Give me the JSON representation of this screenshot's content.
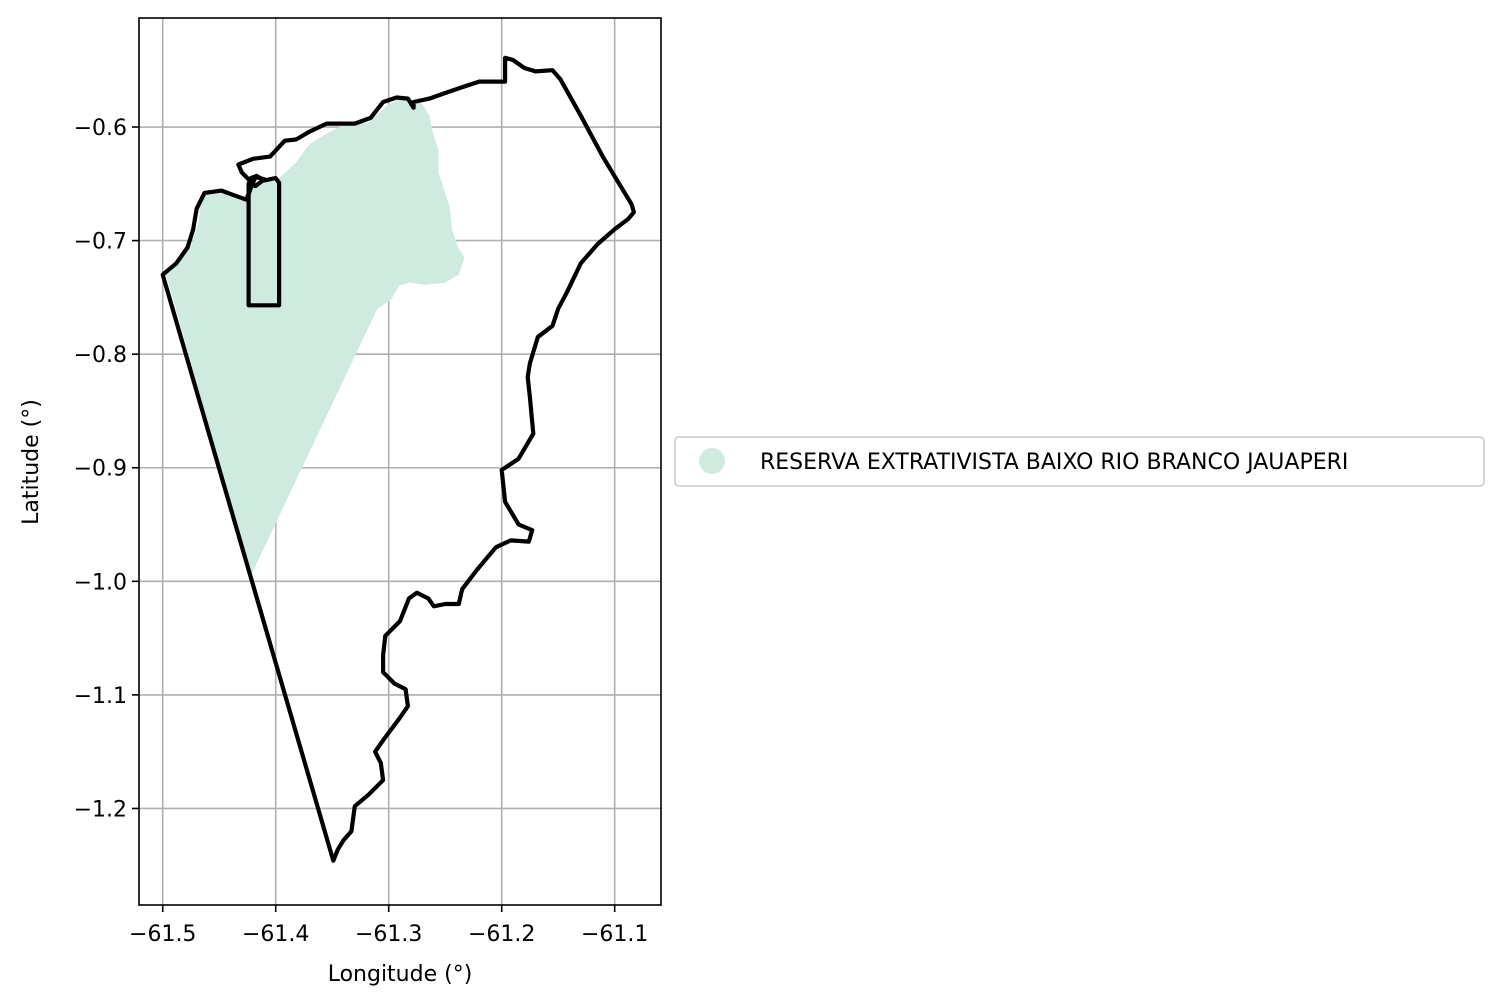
{
  "chart_data": {
    "type": "map",
    "xlabel": "Longitude (°)",
    "ylabel": "Latitude (°)",
    "xlim": [
      -61.521,
      -61.059
    ],
    "ylim": [
      -1.285,
      -0.504
    ],
    "xticks": [
      -61.5,
      -61.4,
      -61.3,
      -61.2,
      -61.1
    ],
    "xtick_labels": [
      "−61.5",
      "−61.4",
      "−61.3",
      "−61.2",
      "−61.1"
    ],
    "yticks": [
      -0.6,
      -0.7,
      -0.8,
      -0.9,
      -1.0,
      -1.1,
      -1.2
    ],
    "ytick_labels": [
      "−0.6",
      "−0.7",
      "−0.8",
      "−0.9",
      "−1.0",
      "−1.1",
      "−1.2"
    ],
    "grid": true,
    "legend": {
      "placement": "right",
      "entries": [
        {
          "label": "RESERVA EXTRATIVISTA BAIXO RIO BRANCO JAUAPERI",
          "color": "#cfebdf",
          "marker": "circle"
        }
      ]
    },
    "fill_region": {
      "color": "#cfebdf",
      "coordinates": [
        [
          -61.497,
          -0.726
        ],
        [
          -61.485,
          -0.718
        ],
        [
          -61.475,
          -0.705
        ],
        [
          -61.468,
          -0.682
        ],
        [
          -61.467,
          -0.668
        ],
        [
          -61.46,
          -0.656
        ],
        [
          -61.445,
          -0.657
        ],
        [
          -61.43,
          -0.662
        ],
        [
          -61.41,
          -0.648
        ],
        [
          -61.4,
          -0.648
        ],
        [
          -61.382,
          -0.631
        ],
        [
          -61.37,
          -0.615
        ],
        [
          -61.352,
          -0.604
        ],
        [
          -61.337,
          -0.597
        ],
        [
          -61.318,
          -0.596
        ],
        [
          -61.3,
          -0.58
        ],
        [
          -61.285,
          -0.573
        ],
        [
          -61.27,
          -0.58
        ],
        [
          -61.264,
          -0.59
        ],
        [
          -61.261,
          -0.605
        ],
        [
          -61.256,
          -0.62
        ],
        [
          -61.256,
          -0.64
        ],
        [
          -61.251,
          -0.655
        ],
        [
          -61.246,
          -0.67
        ],
        [
          -61.244,
          -0.69
        ],
        [
          -61.239,
          -0.705
        ],
        [
          -61.233,
          -0.715
        ],
        [
          -61.238,
          -0.73
        ],
        [
          -61.25,
          -0.737
        ],
        [
          -61.268,
          -0.739
        ],
        [
          -61.282,
          -0.737
        ],
        [
          -61.291,
          -0.74
        ],
        [
          -61.298,
          -0.752
        ],
        [
          -61.31,
          -0.76
        ],
        [
          -61.422,
          -0.995
        ],
        [
          -61.497,
          -0.73
        ]
      ]
    },
    "boundaries": [
      {
        "name": "outer",
        "color": "#000000",
        "coordinates": [
          [
            -61.5,
            -0.73
          ],
          [
            -61.488,
            -0.72
          ],
          [
            -61.478,
            -0.706
          ],
          [
            -61.473,
            -0.69
          ],
          [
            -61.47,
            -0.672
          ],
          [
            -61.463,
            -0.658
          ],
          [
            -61.448,
            -0.656
          ],
          [
            -61.437,
            -0.66
          ],
          [
            -61.426,
            -0.664
          ],
          [
            -61.418,
            -0.644
          ],
          [
            -61.41,
            -0.646
          ],
          [
            -61.418,
            -0.652
          ],
          [
            -61.43,
            -0.64
          ],
          [
            -61.433,
            -0.633
          ],
          [
            -61.42,
            -0.628
          ],
          [
            -61.405,
            -0.626
          ],
          [
            -61.392,
            -0.612
          ],
          [
            -61.382,
            -0.611
          ],
          [
            -61.37,
            -0.604
          ],
          [
            -61.355,
            -0.597
          ],
          [
            -61.342,
            -0.597
          ],
          [
            -61.33,
            -0.597
          ],
          [
            -61.316,
            -0.592
          ],
          [
            -61.305,
            -0.578
          ],
          [
            -61.293,
            -0.574
          ],
          [
            -61.283,
            -0.575
          ],
          [
            -61.278,
            -0.583
          ],
          [
            -61.278,
            -0.578
          ],
          [
            -61.264,
            -0.575
          ],
          [
            -61.25,
            -0.57
          ],
          [
            -61.235,
            -0.565
          ],
          [
            -61.22,
            -0.56
          ],
          [
            -61.197,
            -0.56
          ],
          [
            -61.197,
            -0.539
          ],
          [
            -61.19,
            -0.541
          ],
          [
            -61.18,
            -0.548
          ],
          [
            -61.17,
            -0.551
          ],
          [
            -61.155,
            -0.55
          ],
          [
            -61.148,
            -0.558
          ],
          [
            -61.13,
            -0.59
          ],
          [
            -61.11,
            -0.627
          ],
          [
            -61.085,
            -0.668
          ],
          [
            -61.083,
            -0.675
          ],
          [
            -61.088,
            -0.681
          ],
          [
            -61.1,
            -0.69
          ],
          [
            -61.115,
            -0.703
          ],
          [
            -61.13,
            -0.72
          ],
          [
            -61.142,
            -0.745
          ],
          [
            -61.15,
            -0.76
          ],
          [
            -61.155,
            -0.775
          ],
          [
            -61.168,
            -0.785
          ],
          [
            -61.175,
            -0.808
          ],
          [
            -61.177,
            -0.82
          ],
          [
            -61.175,
            -0.838
          ],
          [
            -61.172,
            -0.87
          ],
          [
            -61.185,
            -0.892
          ],
          [
            -61.2,
            -0.902
          ],
          [
            -61.197,
            -0.93
          ],
          [
            -61.185,
            -0.95
          ],
          [
            -61.173,
            -0.955
          ],
          [
            -61.176,
            -0.965
          ],
          [
            -61.192,
            -0.964
          ],
          [
            -61.205,
            -0.97
          ],
          [
            -61.222,
            -0.99
          ],
          [
            -61.235,
            -1.007
          ],
          [
            -61.238,
            -1.02
          ],
          [
            -61.25,
            -1.02
          ],
          [
            -61.26,
            -1.022
          ],
          [
            -61.265,
            -1.015
          ],
          [
            -61.275,
            -1.01
          ],
          [
            -61.282,
            -1.015
          ],
          [
            -61.29,
            -1.035
          ],
          [
            -61.303,
            -1.048
          ],
          [
            -61.305,
            -1.065
          ],
          [
            -61.305,
            -1.08
          ],
          [
            -61.295,
            -1.09
          ],
          [
            -61.285,
            -1.095
          ],
          [
            -61.283,
            -1.11
          ],
          [
            -61.29,
            -1.12
          ],
          [
            -61.305,
            -1.14
          ],
          [
            -61.312,
            -1.15
          ],
          [
            -61.307,
            -1.16
          ],
          [
            -61.305,
            -1.175
          ],
          [
            -61.318,
            -1.188
          ],
          [
            -61.33,
            -1.198
          ],
          [
            -61.333,
            -1.22
          ],
          [
            -61.34,
            -1.228
          ],
          [
            -61.345,
            -1.236
          ],
          [
            -61.349,
            -1.246
          ],
          [
            -61.5,
            -0.73
          ]
        ]
      },
      {
        "name": "inner-rectangle",
        "color": "#000000",
        "coordinates": [
          [
            -61.422,
            -0.645
          ],
          [
            -61.417,
            -0.643
          ],
          [
            -61.41,
            -0.647
          ],
          [
            -61.4,
            -0.645
          ],
          [
            -61.397,
            -0.649
          ],
          [
            -61.397,
            -0.757
          ],
          [
            -61.424,
            -0.757
          ],
          [
            -61.424,
            -0.65
          ],
          [
            -61.422,
            -0.645
          ]
        ]
      }
    ]
  }
}
